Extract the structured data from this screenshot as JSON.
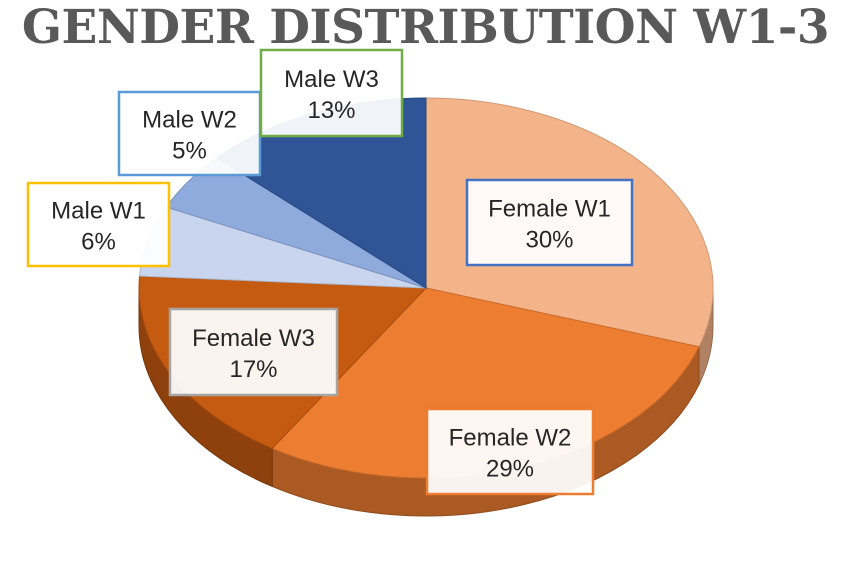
{
  "chart_data": {
    "type": "pie",
    "title": "GENDER DISTRIBUTION W1-3",
    "slices": [
      {
        "label": "Female W1",
        "value": 30,
        "display": "30%",
        "color": "#F4B48A",
        "border": "#4472C4"
      },
      {
        "label": "Female W2",
        "value": 29,
        "display": "29%",
        "color": "#ED7D31",
        "border": "#ED7D31"
      },
      {
        "label": "Female W3",
        "value": 17,
        "display": "17%",
        "color": "#C55A11",
        "border": "#A5A5A5"
      },
      {
        "label": "Male W1",
        "value": 6,
        "display": "6%",
        "color": "#C9D5EE",
        "border": "#FFC000"
      },
      {
        "label": "Male W2",
        "value": 5,
        "display": "5%",
        "color": "#8FAADC",
        "border": "#5B9BD5"
      },
      {
        "label": "Male W3",
        "value": 13,
        "display": "13%",
        "color": "#2F5597",
        "border": "#70AD47"
      }
    ],
    "style": "3d-pie",
    "legend": "none"
  }
}
